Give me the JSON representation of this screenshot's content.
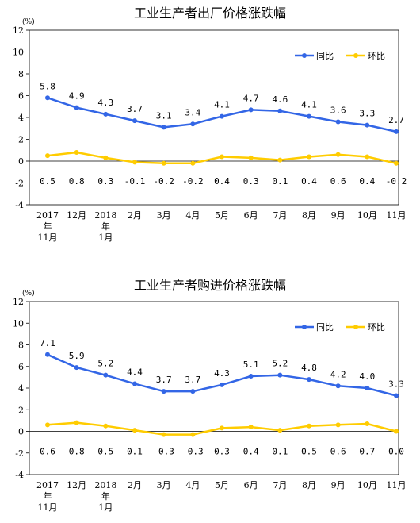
{
  "chart_data": [
    {
      "type": "line",
      "title": "工业生产者出厂价格涨跌幅",
      "unit": "(%)",
      "ylim": [
        -4,
        12
      ],
      "yticks": [
        "-4",
        "-2",
        "0",
        "2",
        "4",
        "6",
        "8",
        "10",
        "12"
      ],
      "categories": [
        "2017年11月",
        "12月",
        "2018年1月",
        "2月",
        "3月",
        "4月",
        "5月",
        "6月",
        "7月",
        "8月",
        "9月",
        "10月",
        "11月"
      ],
      "category_lines": [
        [
          "2017",
          "年",
          "11月"
        ],
        [
          "12月"
        ],
        [
          "2018",
          "年",
          "1月"
        ],
        [
          "2月"
        ],
        [
          "3月"
        ],
        [
          "4月"
        ],
        [
          "5月"
        ],
        [
          "6月"
        ],
        [
          "7月"
        ],
        [
          "8月"
        ],
        [
          "9月"
        ],
        [
          "10月"
        ],
        [
          "11月"
        ]
      ],
      "series": [
        {
          "name": "同比",
          "color": "#3366e6",
          "values": [
            5.8,
            4.9,
            4.3,
            3.7,
            3.1,
            3.4,
            4.1,
            4.7,
            4.6,
            4.1,
            3.6,
            3.3,
            2.7
          ],
          "labels": [
            "5.8",
            "4.9",
            "4.3",
            "3.7",
            "3.1",
            "3.4",
            "4.1",
            "4.7",
            "4.6",
            "4.1",
            "3.6",
            "3.3",
            "2.7"
          ]
        },
        {
          "name": "环比",
          "color": "#ffcc00",
          "values": [
            0.5,
            0.8,
            0.3,
            -0.1,
            -0.2,
            -0.2,
            0.4,
            0.3,
            0.1,
            0.4,
            0.6,
            0.4,
            -0.2
          ],
          "labels": [
            "0.5",
            "0.8",
            "0.3",
            "-0.1",
            "-0.2",
            "-0.2",
            "0.4",
            "0.3",
            "0.1",
            "0.4",
            "0.6",
            "0.4",
            "-0.2"
          ]
        }
      ],
      "legend_position": "top-right",
      "grid": false
    },
    {
      "type": "line",
      "title": "工业生产者购进价格涨跌幅",
      "unit": "(%)",
      "ylim": [
        -4,
        12
      ],
      "yticks": [
        "-4",
        "-2",
        "0",
        "2",
        "4",
        "6",
        "8",
        "10",
        "12"
      ],
      "categories": [
        "2017年11月",
        "12月",
        "2018年1月",
        "2月",
        "3月",
        "4月",
        "5月",
        "6月",
        "7月",
        "8月",
        "9月",
        "10月",
        "11月"
      ],
      "category_lines": [
        [
          "2017",
          "年",
          "11月"
        ],
        [
          "12月"
        ],
        [
          "2018",
          "年",
          "1月"
        ],
        [
          "2月"
        ],
        [
          "3月"
        ],
        [
          "4月"
        ],
        [
          "5月"
        ],
        [
          "6月"
        ],
        [
          "7月"
        ],
        [
          "8月"
        ],
        [
          "9月"
        ],
        [
          "10月"
        ],
        [
          "11月"
        ]
      ],
      "series": [
        {
          "name": "同比",
          "color": "#3366e6",
          "values": [
            7.1,
            5.9,
            5.2,
            4.4,
            3.7,
            3.7,
            4.3,
            5.1,
            5.2,
            4.8,
            4.2,
            4.0,
            3.3
          ],
          "labels": [
            "7.1",
            "5.9",
            "5.2",
            "4.4",
            "3.7",
            "3.7",
            "4.3",
            "5.1",
            "5.2",
            "4.8",
            "4.2",
            "4.0",
            "3.3"
          ]
        },
        {
          "name": "环比",
          "color": "#ffcc00",
          "values": [
            0.6,
            0.8,
            0.5,
            0.1,
            -0.3,
            -0.3,
            0.3,
            0.4,
            0.1,
            0.5,
            0.6,
            0.7,
            0.0
          ],
          "labels": [
            "0.6",
            "0.8",
            "0.5",
            "0.1",
            "-0.3",
            "-0.3",
            "0.3",
            "0.4",
            "0.1",
            "0.5",
            "0.6",
            "0.7",
            "0.0"
          ]
        }
      ],
      "legend_position": "top-right",
      "grid": false
    }
  ]
}
